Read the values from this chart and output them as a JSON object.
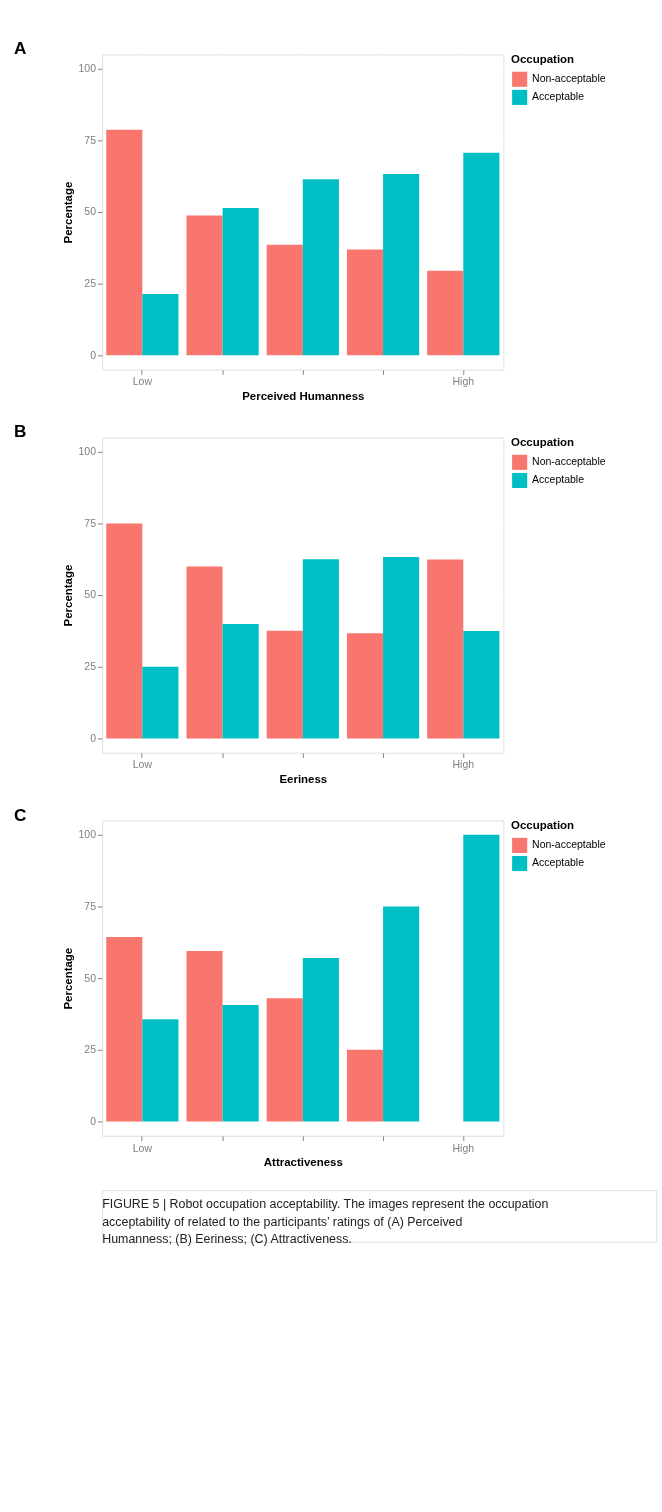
{
  "chart_data": [
    {
      "type": "bar",
      "title": "A",
      "xlabel": "Perceived Humanness",
      "ylabel": "Percentage",
      "legend_title": "Occupation",
      "legend": "right",
      "grid": true,
      "categories": [
        "Low",
        null,
        null,
        null,
        "High"
      ],
      "ylim": [
        -5,
        105
      ],
      "yticks": [
        0,
        25,
        50,
        75,
        100
      ],
      "series": [
        {
          "name": "Non-acceptable",
          "color": "#f8766d",
          "values": [
            78.7,
            48.8,
            38.6,
            36.9,
            29.5
          ]
        },
        {
          "name": "Acceptable",
          "color": "#00bfc4",
          "values": [
            21.4,
            51.4,
            61.4,
            63.3,
            70.7
          ]
        }
      ]
    },
    {
      "type": "bar",
      "title": "B",
      "xlabel": "Eeriness",
      "ylabel": "Percentage",
      "legend_title": "Occupation",
      "legend": "right",
      "grid": true,
      "categories": [
        "Low",
        null,
        null,
        null,
        "High"
      ],
      "ylim": [
        -5,
        105
      ],
      "yticks": [
        0,
        25,
        50,
        75,
        100
      ],
      "series": [
        {
          "name": "Non-acceptable",
          "color": "#f8766d",
          "values": [
            75,
            60,
            37.6,
            36.7,
            62.4
          ]
        },
        {
          "name": "Acceptable",
          "color": "#00bfc4",
          "values": [
            25,
            39.9,
            62.5,
            63.3,
            37.5
          ]
        }
      ]
    },
    {
      "type": "bar",
      "title": "C",
      "xlabel": "Attractiveness",
      "ylabel": "Percentage",
      "legend_title": "Occupation",
      "legend": "right",
      "grid": true,
      "categories": [
        "Low",
        null,
        null,
        null,
        "High"
      ],
      "ylim": [
        -5,
        105
      ],
      "yticks": [
        0,
        25,
        50,
        75,
        100
      ],
      "series": [
        {
          "name": "Non-acceptable",
          "color": "#f8766d",
          "values": [
            64.4,
            59.5,
            43,
            25,
            0
          ]
        },
        {
          "name": "Acceptable",
          "color": "#00bfc4",
          "values": [
            35.7,
            40.6,
            57,
            75,
            100
          ]
        }
      ],
      "annotations": [
        "FIGURE 5 | Robot occupation acceptability. The images represent the occupation acceptability of related to the participants’ ratings of (A) Perceived Humanness; (B) Eeriness; (C) Attractiveness."
      ]
    }
  ]
}
